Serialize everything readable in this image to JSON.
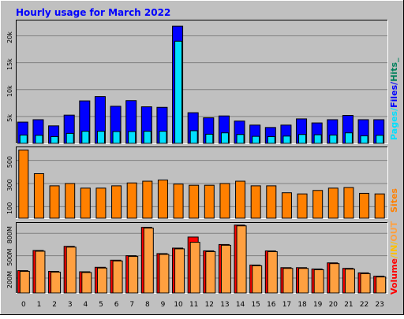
{
  "title": "Hourly usage for March 2022",
  "colors": {
    "background": "#c0c0c0",
    "pages": "#00e0ff",
    "files": "#0000ff",
    "hits": "#00805c",
    "sites": "#ff8000",
    "volume": "#ff0000",
    "in_out": "#ffc000",
    "out": "#ffa040",
    "title": "#0000ff",
    "grid": "#808080"
  },
  "chart_data": [
    {
      "type": "bar",
      "panel": "hits-files-pages",
      "categories": [
        "0",
        "1",
        "2",
        "3",
        "4",
        "5",
        "6",
        "7",
        "8",
        "9",
        "10",
        "11",
        "12",
        "13",
        "14",
        "15",
        "16",
        "17",
        "18",
        "19",
        "20",
        "21",
        "22",
        "23"
      ],
      "series": [
        {
          "name": "Hits",
          "values": [
            3950,
            4400,
            3250,
            5250,
            7900,
            8700,
            6900,
            7950,
            6800,
            6700,
            21800,
            5700,
            4750,
            5100,
            4150,
            3400,
            2950,
            3400,
            4550,
            3800,
            4400,
            5200,
            4400,
            4400
          ]
        },
        {
          "name": "Files",
          "values": [
            3950,
            4400,
            3250,
            5250,
            7900,
            8700,
            6900,
            7950,
            6800,
            6700,
            21800,
            5700,
            4750,
            5100,
            4150,
            3400,
            2950,
            3400,
            4550,
            3800,
            4400,
            5200,
            4400,
            4400
          ]
        },
        {
          "name": "Pages",
          "values": [
            1550,
            1500,
            1250,
            1850,
            2250,
            2250,
            2200,
            2200,
            2250,
            2250,
            19000,
            2350,
            1700,
            1950,
            1650,
            1300,
            1250,
            1350,
            1650,
            1600,
            1550,
            1950,
            1400,
            1500
          ]
        }
      ],
      "ylim": [
        0,
        23000
      ],
      "ytick_labels": [
        "5k",
        "10k",
        "15k",
        "20k"
      ],
      "ylabel_parts": [
        "Pages",
        "/",
        "Files",
        "/",
        "Hits",
        "_"
      ],
      "grid": true
    },
    {
      "type": "bar",
      "panel": "sites",
      "categories": [
        "0",
        "1",
        "2",
        "3",
        "4",
        "5",
        "6",
        "7",
        "8",
        "9",
        "10",
        "11",
        "12",
        "13",
        "14",
        "15",
        "16",
        "17",
        "18",
        "19",
        "20",
        "21",
        "22",
        "23"
      ],
      "series": [
        {
          "name": "Sites",
          "values": [
            590,
            385,
            280,
            300,
            260,
            260,
            280,
            305,
            320,
            330,
            295,
            285,
            285,
            300,
            320,
            280,
            280,
            220,
            210,
            240,
            260,
            265,
            215,
            210
          ]
        }
      ],
      "ylim": [
        0,
        620
      ],
      "ytick_labels": [
        "100",
        "300",
        "500"
      ],
      "ylabel": "Sites",
      "grid": true
    },
    {
      "type": "bar",
      "panel": "volume",
      "categories": [
        "0",
        "1",
        "2",
        "3",
        "4",
        "5",
        "6",
        "7",
        "8",
        "9",
        "10",
        "11",
        "12",
        "13",
        "14",
        "15",
        "16",
        "17",
        "18",
        "19",
        "20",
        "21",
        "22",
        "23"
      ],
      "series": [
        {
          "name": "Volume",
          "values": [
            300,
            570,
            290,
            625,
            285,
            345,
            440,
            500,
            880,
            528,
            602,
            750,
            565,
            650,
            910,
            375,
            564,
            340,
            340,
            322,
            404,
            330,
            270,
            225
          ]
        },
        {
          "name": "OUT",
          "values": [
            290,
            560,
            280,
            615,
            275,
            335,
            430,
            490,
            870,
            518,
            592,
            680,
            555,
            640,
            900,
            365,
            554,
            330,
            330,
            312,
            394,
            320,
            260,
            215
          ]
        }
      ],
      "ylim": [
        0,
        950
      ],
      "ytick_labels": [
        "200M",
        "500M",
        "800M"
      ],
      "ylabel_parts": [
        "Volume",
        "/",
        "IN",
        "/",
        "OUT"
      ],
      "grid": true
    }
  ]
}
